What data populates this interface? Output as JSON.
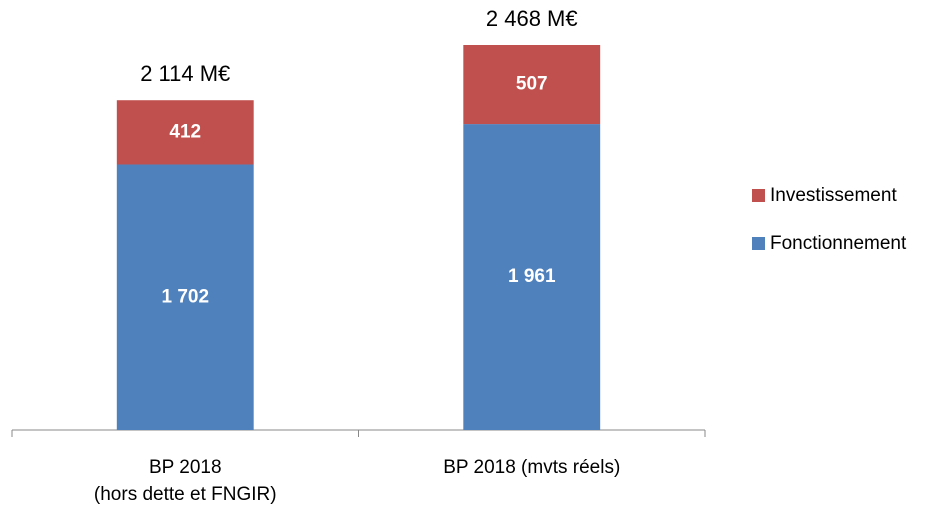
{
  "chart_data": {
    "type": "stacked_bar",
    "categories": [
      "BP 2018\n(hors dette et FNGIR)",
      "BP 2018 (mvts réels)"
    ],
    "series": [
      {
        "name": "Fonctionnement",
        "color": "#4f81bd",
        "values": [
          1702,
          1961
        ],
        "value_labels": [
          "1 702",
          "1 961"
        ]
      },
      {
        "name": "Investissement",
        "color": "#c0504d",
        "values": [
          412,
          507
        ],
        "value_labels": [
          "412",
          "507"
        ]
      }
    ],
    "annotations": [
      "2 114 M€",
      "2 468 M€"
    ],
    "legend": "right"
  }
}
